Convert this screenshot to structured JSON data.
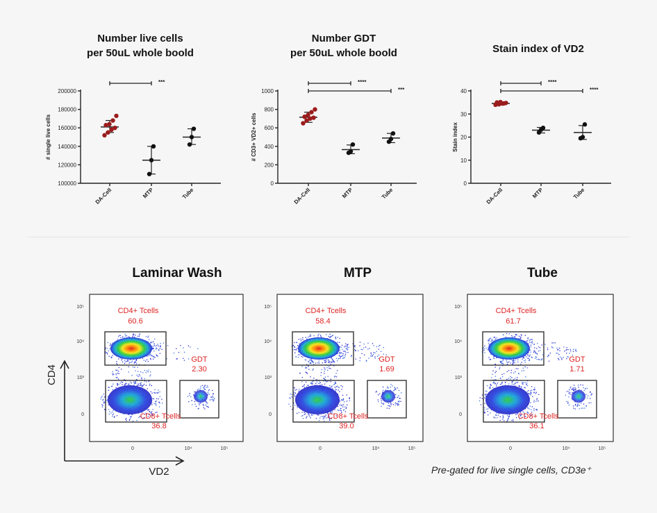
{
  "colors": {
    "series": "#9b1c1c",
    "gate_label": "#d22222",
    "axis": "#222222"
  },
  "chart_data": [
    {
      "type": "scatter",
      "title": "Number live cells\nper 50uL whole boold",
      "ylabel": "# single live cells",
      "categories": [
        "DA-Cell",
        "MTP",
        "Tube"
      ],
      "ylim": [
        100000,
        200000
      ],
      "yticks": [
        100000,
        120000,
        140000,
        160000,
        180000,
        200000
      ],
      "series": [
        {
          "category": "DA-Cell",
          "values": [
            152000,
            155000,
            158000,
            160000,
            163000,
            164000,
            168000,
            173000
          ],
          "mean": 161000,
          "sd_low": 155000,
          "sd_high": 168000
        },
        {
          "category": "MTP",
          "values": [
            110000,
            125000,
            140000
          ],
          "mean": 125000,
          "sd_low": 110000,
          "sd_high": 140000
        },
        {
          "category": "Tube",
          "values": [
            142000,
            150000,
            159000
          ],
          "mean": 150000,
          "sd_low": 142000,
          "sd_high": 159000
        }
      ],
      "sig": [
        {
          "from": 0,
          "to": 1,
          "label": "***"
        }
      ]
    },
    {
      "type": "scatter",
      "title": "Number GDT\nper 50uL whole boold",
      "ylabel": "# CD3+ VD2+ cells",
      "categories": [
        "DA-Cell",
        "MTP",
        "Tube"
      ],
      "ylim": [
        0,
        1000
      ],
      "yticks": [
        0,
        200,
        400,
        600,
        800,
        1000
      ],
      "series": [
        {
          "category": "DA-Cell",
          "values": [
            650,
            680,
            700,
            710,
            720,
            740,
            770,
            800
          ],
          "mean": 715,
          "sd_low": 660,
          "sd_high": 770
        },
        {
          "category": "MTP",
          "values": [
            330,
            345,
            420
          ],
          "mean": 365,
          "sd_low": 320,
          "sd_high": 415
        },
        {
          "category": "Tube",
          "values": [
            450,
            480,
            540
          ],
          "mean": 490,
          "sd_low": 440,
          "sd_high": 540
        }
      ],
      "sig": [
        {
          "from": 0,
          "to": 1,
          "label": "****"
        },
        {
          "from": 0,
          "to": 2,
          "label": "***"
        }
      ]
    },
    {
      "type": "scatter",
      "title": "Stain index of VD2",
      "ylabel": "Stain index",
      "categories": [
        "DA-Cell",
        "MTP",
        "Tube"
      ],
      "ylim": [
        0,
        40
      ],
      "yticks": [
        0,
        10,
        20,
        30,
        40
      ],
      "series": [
        {
          "category": "DA-Cell",
          "values": [
            34,
            34.2,
            34.5,
            34.8,
            35,
            35.2,
            34.6
          ],
          "mean": 34.6,
          "sd_low": 34,
          "sd_high": 35.2
        },
        {
          "category": "MTP",
          "values": [
            22,
            23.2,
            24
          ],
          "mean": 23,
          "sd_low": 21.8,
          "sd_high": 24.2
        },
        {
          "category": "Tube",
          "values": [
            19.5,
            20,
            25.5
          ],
          "mean": 22,
          "sd_low": 19,
          "sd_high": 25
        }
      ],
      "sig": [
        {
          "from": 0,
          "to": 1,
          "label": "****"
        },
        {
          "from": 0,
          "to": 2,
          "label": "****"
        }
      ]
    }
  ],
  "flow": {
    "panels": [
      {
        "title": "Laminar Wash",
        "cd4_label": "CD4+ Tcells",
        "cd4_value": "60.6",
        "gdt_label": "GDT",
        "gdt_value": "2.30",
        "cd8_label": "CD8+ Tcells",
        "cd8_value": "36.8"
      },
      {
        "title": "MTP",
        "cd4_label": "CD4+ Tcells",
        "cd4_value": "58.4",
        "gdt_label": "GDT",
        "gdt_value": "1.69",
        "cd8_label": "CD8+ Tcells",
        "cd8_value": "39.0"
      },
      {
        "title": "Tube",
        "cd4_label": "CD4+ Tcells",
        "cd4_value": "61.7",
        "gdt_label": "GDT",
        "gdt_value": "1.71",
        "cd8_label": "CD8+ Tcells",
        "cd8_value": "36.1"
      }
    ],
    "y_axis_label": "CD4",
    "x_axis_label": "VD2",
    "ticks": {
      "y": [
        "10⁵",
        "10⁴",
        "10³",
        "0"
      ],
      "x": [
        "0",
        "10⁴",
        "10⁵"
      ]
    },
    "note": "Pre-gated for live single cells, CD3e⁺"
  }
}
